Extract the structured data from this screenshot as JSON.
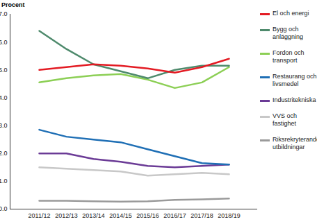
{
  "chart_data": {
    "type": "line",
    "ylabel": "Procent",
    "categories": [
      "2011/12",
      "2012/13",
      "2013/14",
      "2014/15",
      "2015/16",
      "2016/17",
      "2017/18",
      "2018/19"
    ],
    "series": [
      {
        "name": "El och energi",
        "color": "#e31b23",
        "values": [
          5.0,
          5.1,
          5.2,
          5.15,
          5.05,
          4.9,
          5.1,
          5.4
        ]
      },
      {
        "name": "Bygg och anläggning",
        "color": "#4e8a6c",
        "values": [
          6.4,
          5.75,
          5.2,
          4.95,
          4.7,
          5.0,
          5.15,
          5.15
        ]
      },
      {
        "name": "Fordon och transport",
        "color": "#8ccf55",
        "values": [
          4.55,
          4.7,
          4.8,
          4.85,
          4.65,
          4.35,
          4.55,
          5.1
        ]
      },
      {
        "name": "Restaurang och livsmedel",
        "color": "#1f6fb5",
        "values": [
          2.85,
          2.6,
          2.5,
          2.4,
          2.15,
          1.9,
          1.65,
          1.6
        ]
      },
      {
        "name": "Industritekniska",
        "color": "#6b3b96",
        "values": [
          2.0,
          2.0,
          1.8,
          1.7,
          1.55,
          1.5,
          1.55,
          1.6
        ]
      },
      {
        "name": "VVS och fastighet",
        "color": "#c8c8c8",
        "values": [
          1.5,
          1.45,
          1.4,
          1.35,
          1.2,
          1.25,
          1.3,
          1.25
        ]
      },
      {
        "name": "Riksrekryterande utbildningar",
        "color": "#9a9a9a",
        "values": [
          0.3,
          0.3,
          0.28,
          0.27,
          0.28,
          0.33,
          0.35,
          0.38
        ]
      }
    ],
    "ylim": [
      0,
      7
    ],
    "yticks": [
      0,
      1,
      2,
      3,
      4,
      5,
      6,
      7
    ],
    "grid": false,
    "legend": "right"
  }
}
